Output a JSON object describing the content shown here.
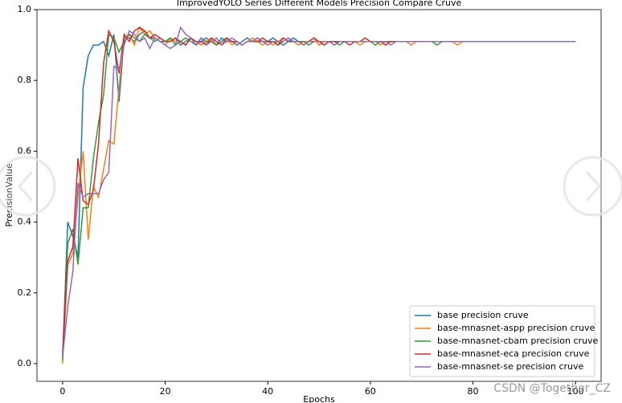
{
  "chart_data": {
    "type": "line",
    "title": "ImprovedYOLO Series Different Models Precision Compare Cruve",
    "x_label": "Epochs",
    "y_label": "PrecisionValue",
    "watermark": "CSDN @Together_CZ",
    "xlim": [
      -5,
      105
    ],
    "ylim": [
      -0.05,
      1.0
    ],
    "xticks": [
      0,
      20,
      40,
      60,
      80,
      100
    ],
    "yticks": [
      {
        "value": 0,
        "label": "0.0"
      },
      0.2,
      0.4,
      0.6,
      0.8,
      {
        "value": 1,
        "label": "1.0"
      }
    ],
    "legend": "lower right",
    "x": [
      0,
      1,
      2,
      3,
      4,
      5,
      6,
      7,
      8,
      9,
      10,
      11,
      12,
      13,
      14,
      15,
      16,
      17,
      18,
      19,
      20,
      21,
      22,
      23,
      24,
      25,
      26,
      27,
      28,
      29,
      30,
      31,
      32,
      33,
      34,
      35,
      36,
      37,
      38,
      39,
      40,
      41,
      42,
      43,
      44,
      45,
      46,
      47,
      48,
      49,
      50,
      51,
      52,
      53,
      54,
      55,
      56,
      57,
      58,
      59,
      60,
      61,
      62,
      63,
      64,
      65,
      66,
      67,
      68,
      69,
      70,
      71,
      72,
      73,
      74,
      75,
      76,
      77,
      78,
      79,
      80,
      81,
      82,
      83,
      84,
      85,
      86,
      87,
      88,
      89,
      90,
      91,
      92,
      93,
      94,
      95,
      96,
      97,
      98,
      99,
      100
    ],
    "series": [
      {
        "name": "base precision cruve",
        "color": "#1f77b4",
        "values": [
          0.02,
          0.4,
          0.36,
          0.3,
          0.78,
          0.87,
          0.9,
          0.9,
          0.91,
          0.87,
          0.93,
          0.74,
          0.92,
          0.92,
          0.91,
          0.93,
          0.94,
          0.92,
          0.92,
          0.91,
          0.91,
          0.91,
          0.92,
          0.9,
          0.91,
          0.92,
          0.9,
          0.91,
          0.92,
          0.91,
          0.9,
          0.92,
          0.91,
          0.91,
          0.9,
          0.91,
          0.92,
          0.91,
          0.91,
          0.91,
          0.91,
          0.92,
          0.91,
          0.9,
          0.91,
          0.92,
          0.91,
          0.91,
          0.91,
          0.91,
          0.91,
          0.91,
          0.91,
          0.9,
          0.91,
          0.91,
          0.91,
          0.91,
          0.91,
          0.91,
          0.91,
          0.91,
          0.91,
          0.91,
          0.91,
          0.91,
          0.91,
          0.91,
          0.91,
          0.91,
          0.91,
          0.91,
          0.91,
          0.91,
          0.91,
          0.91,
          0.91,
          0.91,
          0.91,
          0.91,
          0.91,
          0.91,
          0.91,
          0.91,
          0.91,
          0.91,
          0.91,
          0.91,
          0.91,
          0.91,
          0.91,
          0.91,
          0.91,
          0.91,
          0.91,
          0.91,
          0.91,
          0.91,
          0.91,
          0.91,
          0.91
        ]
      },
      {
        "name": "base-mnasnet-aspp precision cruve",
        "color": "#ff7f0e",
        "values": [
          0.0,
          0.28,
          0.31,
          0.47,
          0.6,
          0.35,
          0.5,
          0.47,
          0.55,
          0.63,
          0.62,
          0.78,
          0.92,
          0.93,
          0.9,
          0.95,
          0.93,
          0.94,
          0.92,
          0.91,
          0.9,
          0.92,
          0.91,
          0.91,
          0.9,
          0.92,
          0.91,
          0.9,
          0.91,
          0.92,
          0.9,
          0.91,
          0.92,
          0.9,
          0.91,
          0.9,
          0.91,
          0.92,
          0.91,
          0.9,
          0.91,
          0.9,
          0.91,
          0.92,
          0.91,
          0.91,
          0.9,
          0.91,
          0.91,
          0.92,
          0.9,
          0.91,
          0.91,
          0.9,
          0.91,
          0.91,
          0.91,
          0.91,
          0.9,
          0.91,
          0.91,
          0.91,
          0.9,
          0.91,
          0.91,
          0.91,
          0.91,
          0.91,
          0.9,
          0.91,
          0.91,
          0.91,
          0.91,
          0.91,
          0.91,
          0.91,
          0.91,
          0.9,
          0.91,
          0.91,
          0.91,
          0.91,
          0.91,
          0.91,
          0.91,
          0.91,
          0.91,
          0.91,
          0.91,
          0.91,
          0.91,
          0.91,
          0.91,
          0.91,
          0.91,
          0.91,
          0.91,
          0.91,
          0.91,
          0.91,
          0.91
        ]
      },
      {
        "name": "base-mnasnet-cbam precision cruve",
        "color": "#2ca02c",
        "values": [
          0.01,
          0.34,
          0.38,
          0.28,
          0.44,
          0.44,
          0.58,
          0.68,
          0.76,
          0.93,
          0.92,
          0.88,
          0.91,
          0.93,
          0.92,
          0.91,
          0.93,
          0.92,
          0.91,
          0.92,
          0.91,
          0.92,
          0.9,
          0.91,
          0.92,
          0.91,
          0.9,
          0.92,
          0.91,
          0.91,
          0.9,
          0.91,
          0.92,
          0.91,
          0.91,
          0.9,
          0.91,
          0.91,
          0.92,
          0.91,
          0.91,
          0.91,
          0.9,
          0.91,
          0.92,
          0.91,
          0.91,
          0.91,
          0.9,
          0.91,
          0.91,
          0.91,
          0.91,
          0.91,
          0.9,
          0.91,
          0.91,
          0.91,
          0.91,
          0.91,
          0.91,
          0.9,
          0.91,
          0.91,
          0.91,
          0.91,
          0.91,
          0.91,
          0.91,
          0.91,
          0.91,
          0.91,
          0.91,
          0.9,
          0.91,
          0.91,
          0.91,
          0.91,
          0.91,
          0.91,
          0.91,
          0.91,
          0.91,
          0.91,
          0.91,
          0.91,
          0.91,
          0.91,
          0.91,
          0.91,
          0.91,
          0.91,
          0.91,
          0.91,
          0.91,
          0.91,
          0.91,
          0.91,
          0.91,
          0.91,
          0.91
        ]
      },
      {
        "name": "base-mnasnet-eca precision cruve",
        "color": "#d62728",
        "values": [
          0.03,
          0.29,
          0.33,
          0.58,
          0.46,
          0.45,
          0.49,
          0.62,
          0.85,
          0.94,
          0.91,
          0.82,
          0.93,
          0.91,
          0.94,
          0.95,
          0.94,
          0.92,
          0.93,
          0.92,
          0.91,
          0.91,
          0.92,
          0.91,
          0.9,
          0.92,
          0.91,
          0.91,
          0.9,
          0.92,
          0.91,
          0.9,
          0.92,
          0.91,
          0.91,
          0.9,
          0.91,
          0.91,
          0.91,
          0.92,
          0.91,
          0.91,
          0.9,
          0.92,
          0.91,
          0.91,
          0.91,
          0.9,
          0.91,
          0.92,
          0.91,
          0.9,
          0.91,
          0.91,
          0.91,
          0.91,
          0.9,
          0.91,
          0.91,
          0.92,
          0.91,
          0.91,
          0.91,
          0.9,
          0.91,
          0.91,
          0.91,
          0.91,
          0.91,
          0.91,
          0.91,
          0.91,
          0.91,
          0.91,
          0.91,
          0.91,
          0.91,
          0.91,
          0.91,
          0.91,
          0.91,
          0.91,
          0.91,
          0.91,
          0.91,
          0.91,
          0.91,
          0.91,
          0.91,
          0.91,
          0.91,
          0.91,
          0.91,
          0.91,
          0.91,
          0.91,
          0.91,
          0.91,
          0.91,
          0.91,
          0.91
        ]
      },
      {
        "name": "base-mnasnet-se precision cruve",
        "color": "#9467bd",
        "values": [
          0.02,
          0.16,
          0.26,
          0.51,
          0.47,
          0.48,
          0.48,
          0.48,
          0.52,
          0.54,
          0.84,
          0.83,
          0.9,
          0.94,
          0.93,
          0.91,
          0.92,
          0.89,
          0.92,
          0.91,
          0.9,
          0.89,
          0.9,
          0.95,
          0.93,
          0.92,
          0.9,
          0.92,
          0.9,
          0.91,
          0.92,
          0.9,
          0.91,
          0.92,
          0.91,
          0.9,
          0.91,
          0.91,
          0.92,
          0.91,
          0.9,
          0.91,
          0.91,
          0.91,
          0.92,
          0.91,
          0.91,
          0.9,
          0.91,
          0.91,
          0.91,
          0.91,
          0.91,
          0.9,
          0.91,
          0.91,
          0.91,
          0.91,
          0.91,
          0.91,
          0.91,
          0.91,
          0.91,
          0.91,
          0.9,
          0.91,
          0.91,
          0.91,
          0.91,
          0.91,
          0.91,
          0.91,
          0.91,
          0.91,
          0.91,
          0.91,
          0.91,
          0.91,
          0.91,
          0.91,
          0.91,
          0.91,
          0.91,
          0.91,
          0.91,
          0.91,
          0.91,
          0.91,
          0.91,
          0.91,
          0.91,
          0.91,
          0.91,
          0.91,
          0.91,
          0.91,
          0.91,
          0.91,
          0.91,
          0.91,
          0.91
        ]
      }
    ]
  }
}
